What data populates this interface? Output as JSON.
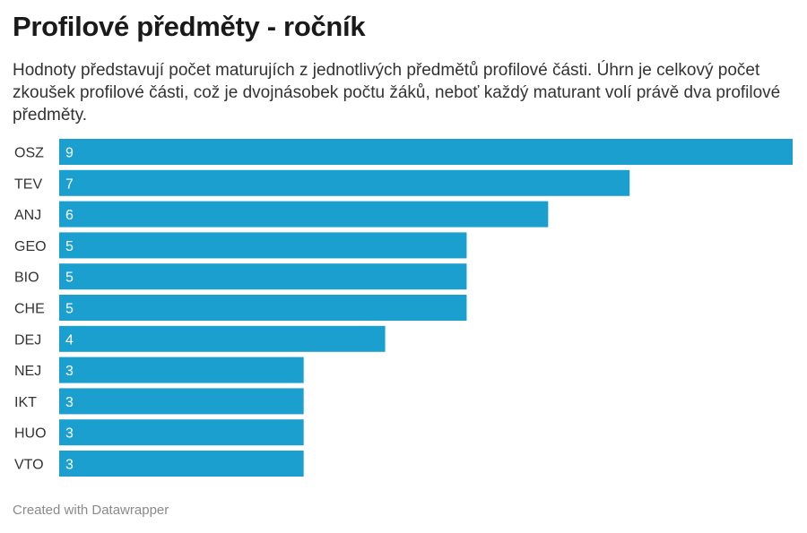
{
  "header": {
    "title": "Profilové předměty - ročník",
    "subtitle": "Hodnoty představují počet maturujích z jednotlivých předmětů profilové části. Úhrn je celkový počet zkoušek profilové části, což je dvojnásobek počtu žáků, neboť každý maturant volí právě dva profilové předměty."
  },
  "footer": {
    "credit": "Created with Datawrapper"
  },
  "colors": {
    "bar": "#1b9fcf"
  },
  "chart_data": {
    "type": "bar",
    "orientation": "horizontal",
    "title": "Profilové předměty - ročník",
    "categories": [
      "OSZ",
      "TEV",
      "ANJ",
      "GEO",
      "BIO",
      "CHE",
      "DEJ",
      "NEJ",
      "IKT",
      "HUO",
      "VTO"
    ],
    "values": [
      9,
      7,
      6,
      5,
      5,
      5,
      4,
      3,
      3,
      3,
      3
    ],
    "xlim": [
      0,
      9
    ],
    "data_labels": true,
    "grid": false
  }
}
